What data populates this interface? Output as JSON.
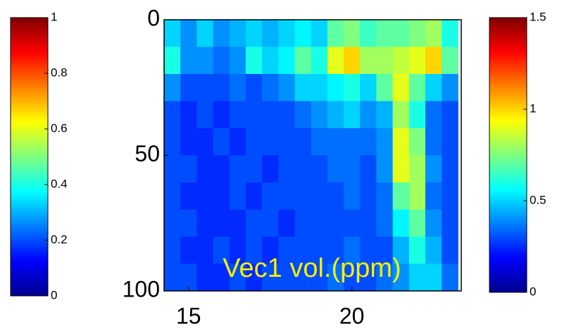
{
  "chart_data": {
    "type": "heatmap",
    "annotation": "Vec1 vol.(ppm)",
    "xlim": [
      14.25,
      23.35
    ],
    "xticks": [
      15,
      20
    ],
    "ylim": [
      0,
      100
    ],
    "yticks": [
      0,
      50,
      100
    ],
    "y_reversed": true,
    "colormap": "jet",
    "clim": [
      0,
      1.5
    ],
    "xbins": [
      14.25,
      14.75,
      15.25,
      15.75,
      16.25,
      16.75,
      17.25,
      17.75,
      18.25,
      18.75,
      19.25,
      19.75,
      20.25,
      20.75,
      21.25,
      21.75,
      22.25,
      22.75,
      23.25
    ],
    "ybins": [
      0,
      10,
      20,
      30,
      40,
      50,
      60,
      70,
      80,
      90,
      100
    ],
    "z": [
      [
        0.5,
        0.4,
        0.5,
        0.4,
        0.45,
        0.5,
        0.45,
        0.5,
        0.55,
        0.5,
        0.7,
        0.75,
        0.65,
        0.7,
        0.7,
        0.75,
        0.8,
        0.6
      ],
      [
        0.6,
        0.4,
        0.4,
        0.35,
        0.4,
        0.6,
        0.5,
        0.55,
        0.7,
        0.6,
        0.9,
        1.0,
        0.8,
        0.8,
        0.85,
        0.9,
        1.0,
        0.7
      ],
      [
        0.4,
        0.3,
        0.3,
        0.3,
        0.35,
        0.3,
        0.35,
        0.4,
        0.5,
        0.5,
        0.55,
        0.6,
        0.5,
        0.7,
        0.9,
        0.7,
        0.5,
        0.4
      ],
      [
        0.3,
        0.25,
        0.3,
        0.25,
        0.3,
        0.3,
        0.3,
        0.3,
        0.35,
        0.4,
        0.45,
        0.5,
        0.4,
        0.45,
        0.8,
        0.6,
        0.35,
        0.3
      ],
      [
        0.3,
        0.25,
        0.25,
        0.3,
        0.25,
        0.3,
        0.3,
        0.3,
        0.3,
        0.35,
        0.35,
        0.35,
        0.35,
        0.4,
        0.9,
        0.75,
        0.35,
        0.3
      ],
      [
        0.3,
        0.3,
        0.25,
        0.25,
        0.3,
        0.3,
        0.25,
        0.3,
        0.3,
        0.3,
        0.35,
        0.35,
        0.3,
        0.4,
        0.9,
        0.8,
        0.4,
        0.3
      ],
      [
        0.3,
        0.25,
        0.25,
        0.25,
        0.3,
        0.25,
        0.3,
        0.3,
        0.3,
        0.3,
        0.3,
        0.35,
        0.3,
        0.35,
        0.7,
        0.8,
        0.35,
        0.3
      ],
      [
        0.3,
        0.3,
        0.25,
        0.25,
        0.25,
        0.3,
        0.3,
        0.25,
        0.3,
        0.3,
        0.3,
        0.3,
        0.3,
        0.35,
        0.55,
        0.7,
        0.4,
        0.3
      ],
      [
        0.3,
        0.25,
        0.25,
        0.3,
        0.25,
        0.3,
        0.25,
        0.3,
        0.3,
        0.3,
        0.3,
        0.35,
        0.3,
        0.3,
        0.45,
        0.6,
        0.45,
        0.3
      ],
      [
        0.3,
        0.3,
        0.25,
        0.25,
        0.3,
        0.25,
        0.3,
        0.3,
        0.3,
        0.3,
        0.35,
        0.3,
        0.3,
        0.35,
        0.4,
        0.5,
        0.5,
        0.35
      ]
    ],
    "colorbars": [
      {
        "lim": [
          0,
          1
        ],
        "ticks": [
          0,
          0.2,
          0.4,
          0.6,
          0.8,
          1
        ]
      },
      {
        "lim": [
          0,
          1.5
        ],
        "ticks": [
          0,
          0.5,
          1,
          1.5
        ]
      }
    ]
  }
}
